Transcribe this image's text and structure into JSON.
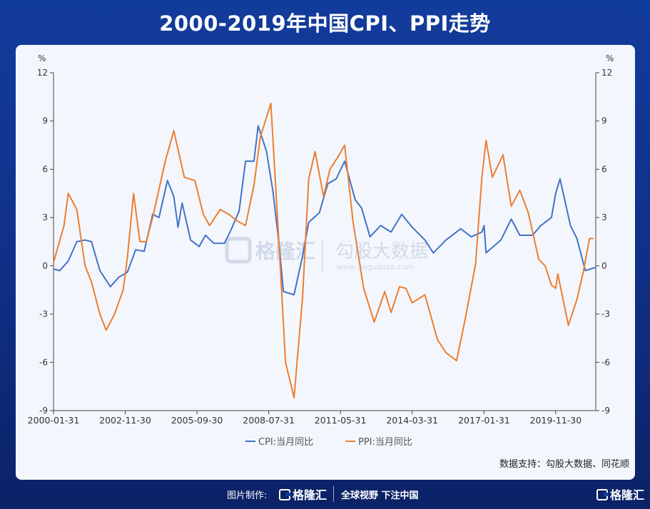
{
  "title": "2000-2019年中国CPI、PPI走势",
  "watermark": {
    "left_name": "格隆汇",
    "right_name": "勾股大数据",
    "right_url": "www.gogudata.com"
  },
  "source": "数据支持：勾股大数据、同花顺",
  "footer": {
    "made_by": "图片制作:",
    "logo": "格隆汇",
    "slogan": "全球视野 下注中国",
    "logo_right": "格隆汇"
  },
  "chart_data": {
    "type": "line",
    "y_unit_left": "%",
    "y_unit_right": "%",
    "ylim": [
      -9,
      12
    ],
    "yticks": [
      -9,
      -6,
      -3,
      0,
      3,
      6,
      9,
      12
    ],
    "xlim": [
      "2000-01-31",
      "2021-06-30"
    ],
    "xticks": [
      "2000-01-31",
      "2002-11-30",
      "2005-09-30",
      "2008-07-31",
      "2011-05-31",
      "2014-03-31",
      "2017-01-31",
      "2019-11-30"
    ],
    "grid": false,
    "legend_position": "bottom",
    "series": [
      {
        "name": "CPI:当月同比",
        "color": "#4472c4",
        "points": [
          [
            "2000-01-31",
            -0.2
          ],
          [
            "2000-04-30",
            -0.3
          ],
          [
            "2000-08-31",
            0.3
          ],
          [
            "2000-12-31",
            1.5
          ],
          [
            "2001-04-30",
            1.6
          ],
          [
            "2001-07-31",
            1.5
          ],
          [
            "2001-11-30",
            -0.3
          ],
          [
            "2002-04-30",
            -1.3
          ],
          [
            "2002-08-31",
            -0.7
          ],
          [
            "2002-12-31",
            -0.4
          ],
          [
            "2003-04-30",
            1.0
          ],
          [
            "2003-08-31",
            0.9
          ],
          [
            "2003-12-31",
            3.2
          ],
          [
            "2004-03-31",
            3.0
          ],
          [
            "2004-07-31",
            5.3
          ],
          [
            "2004-10-31",
            4.3
          ],
          [
            "2004-12-31",
            2.4
          ],
          [
            "2005-02-28",
            3.9
          ],
          [
            "2005-06-30",
            1.6
          ],
          [
            "2005-10-31",
            1.2
          ],
          [
            "2006-01-31",
            1.9
          ],
          [
            "2006-05-31",
            1.4
          ],
          [
            "2006-10-31",
            1.4
          ],
          [
            "2007-01-31",
            2.2
          ],
          [
            "2007-05-31",
            3.4
          ],
          [
            "2007-08-31",
            6.5
          ],
          [
            "2007-12-31",
            6.5
          ],
          [
            "2008-02-29",
            8.7
          ],
          [
            "2008-06-30",
            7.1
          ],
          [
            "2008-09-30",
            4.6
          ],
          [
            "2008-12-31",
            1.2
          ],
          [
            "2009-02-28",
            -1.6
          ],
          [
            "2009-07-31",
            -1.8
          ],
          [
            "2009-11-30",
            0.6
          ],
          [
            "2010-02-28",
            2.7
          ],
          [
            "2010-07-31",
            3.3
          ],
          [
            "2010-11-30",
            5.1
          ],
          [
            "2011-03-31",
            5.4
          ],
          [
            "2011-07-31",
            6.5
          ],
          [
            "2011-12-31",
            4.1
          ],
          [
            "2012-03-31",
            3.6
          ],
          [
            "2012-07-31",
            1.8
          ],
          [
            "2012-12-31",
            2.5
          ],
          [
            "2013-05-31",
            2.1
          ],
          [
            "2013-10-31",
            3.2
          ],
          [
            "2014-03-31",
            2.4
          ],
          [
            "2014-09-30",
            1.6
          ],
          [
            "2015-01-31",
            0.8
          ],
          [
            "2015-07-31",
            1.6
          ],
          [
            "2016-02-29",
            2.3
          ],
          [
            "2016-07-31",
            1.8
          ],
          [
            "2016-12-31",
            2.1
          ],
          [
            "2017-01-31",
            2.5
          ],
          [
            "2017-02-28",
            0.8
          ],
          [
            "2017-09-30",
            1.6
          ],
          [
            "2018-02-28",
            2.9
          ],
          [
            "2018-06-30",
            1.9
          ],
          [
            "2018-12-31",
            1.9
          ],
          [
            "2019-04-30",
            2.5
          ],
          [
            "2019-09-30",
            3.0
          ],
          [
            "2019-11-30",
            4.5
          ],
          [
            "2020-01-31",
            5.4
          ],
          [
            "2020-06-30",
            2.5
          ],
          [
            "2020-09-30",
            1.7
          ],
          [
            "2020-12-31",
            0.2
          ],
          [
            "2021-01-31",
            -0.3
          ],
          [
            "2021-06-30",
            -0.1
          ]
        ]
      },
      {
        "name": "PPI:当月同比",
        "color": "#ed7d31",
        "points": [
          [
            "2000-01-31",
            0.2
          ],
          [
            "2000-06-30",
            2.5
          ],
          [
            "2000-08-31",
            4.5
          ],
          [
            "2000-12-31",
            3.5
          ],
          [
            "2001-04-30",
            0.0
          ],
          [
            "2001-07-31",
            -1.0
          ],
          [
            "2001-11-30",
            -3.0
          ],
          [
            "2002-02-28",
            -4.0
          ],
          [
            "2002-06-30",
            -3.0
          ],
          [
            "2002-10-31",
            -1.5
          ],
          [
            "2002-12-31",
            0.5
          ],
          [
            "2003-03-31",
            4.5
          ],
          [
            "2003-06-30",
            1.5
          ],
          [
            "2003-09-30",
            1.5
          ],
          [
            "2003-12-31",
            3.0
          ],
          [
            "2004-06-30",
            6.5
          ],
          [
            "2004-10-31",
            8.4
          ],
          [
            "2005-03-31",
            5.5
          ],
          [
            "2005-08-31",
            5.3
          ],
          [
            "2005-12-31",
            3.2
          ],
          [
            "2006-03-31",
            2.5
          ],
          [
            "2006-08-31",
            3.5
          ],
          [
            "2006-12-31",
            3.2
          ],
          [
            "2007-04-30",
            2.8
          ],
          [
            "2007-08-31",
            2.5
          ],
          [
            "2007-12-31",
            5.0
          ],
          [
            "2008-03-31",
            8.0
          ],
          [
            "2008-08-31",
            10.1
          ],
          [
            "2008-12-31",
            1.0
          ],
          [
            "2009-03-31",
            -6.0
          ],
          [
            "2009-07-31",
            -8.2
          ],
          [
            "2009-11-30",
            -2.0
          ],
          [
            "2010-02-28",
            5.4
          ],
          [
            "2010-05-31",
            7.1
          ],
          [
            "2010-09-30",
            4.3
          ],
          [
            "2010-12-31",
            6.0
          ],
          [
            "2011-04-30",
            6.8
          ],
          [
            "2011-07-31",
            7.5
          ],
          [
            "2011-11-30",
            2.7
          ],
          [
            "2012-04-30",
            -1.4
          ],
          [
            "2012-09-30",
            -3.5
          ],
          [
            "2013-02-28",
            -1.6
          ],
          [
            "2013-05-31",
            -2.9
          ],
          [
            "2013-09-30",
            -1.3
          ],
          [
            "2013-12-31",
            -1.4
          ],
          [
            "2014-03-31",
            -2.3
          ],
          [
            "2014-09-30",
            -1.8
          ],
          [
            "2015-03-31",
            -4.6
          ],
          [
            "2015-07-31",
            -5.4
          ],
          [
            "2015-12-31",
            -5.9
          ],
          [
            "2016-04-30",
            -3.4
          ],
          [
            "2016-09-30",
            0.1
          ],
          [
            "2016-12-31",
            5.5
          ],
          [
            "2017-02-28",
            7.8
          ],
          [
            "2017-05-31",
            5.5
          ],
          [
            "2017-10-31",
            6.9
          ],
          [
            "2018-02-28",
            3.7
          ],
          [
            "2018-06-30",
            4.7
          ],
          [
            "2018-10-31",
            3.3
          ],
          [
            "2019-03-31",
            0.4
          ],
          [
            "2019-06-30",
            0.0
          ],
          [
            "2019-09-30",
            -1.2
          ],
          [
            "2019-11-30",
            -1.4
          ],
          [
            "2019-12-31",
            -0.5
          ],
          [
            "2020-05-31",
            -3.7
          ],
          [
            "2020-09-30",
            -2.1
          ],
          [
            "2020-12-31",
            -0.4
          ],
          [
            "2021-03-31",
            1.7
          ],
          [
            "2021-05-31",
            1.7
          ]
        ]
      }
    ]
  }
}
